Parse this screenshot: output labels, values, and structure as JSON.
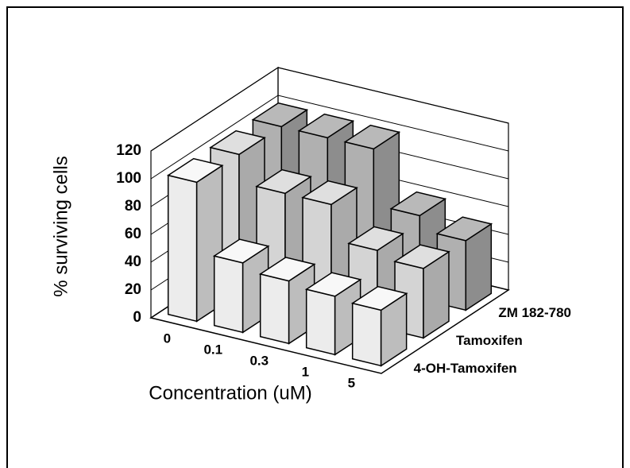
{
  "chart_data": {
    "type": "bar3d",
    "ylabel": "% surviving cells",
    "xlabel": "Concentration (uM)",
    "categories": [
      "0",
      "0.1",
      "0.3",
      "1",
      "5"
    ],
    "series": [
      {
        "name": "4-OH-Tamoxifen",
        "color": "#ececec",
        "values": [
          100,
          50,
          45,
          42,
          40
        ]
      },
      {
        "name": "Tamoxifen",
        "color": "#d4d4d4",
        "values": [
          100,
          80,
          80,
          55,
          50
        ]
      },
      {
        "name": "ZM 182-780",
        "color": "#b0b0b0",
        "values": [
          100,
          100,
          100,
          60,
          50
        ]
      }
    ],
    "ylim": [
      0,
      120
    ],
    "yticks": [
      0,
      20,
      40,
      60,
      80,
      100,
      120
    ],
    "grid": true
  }
}
